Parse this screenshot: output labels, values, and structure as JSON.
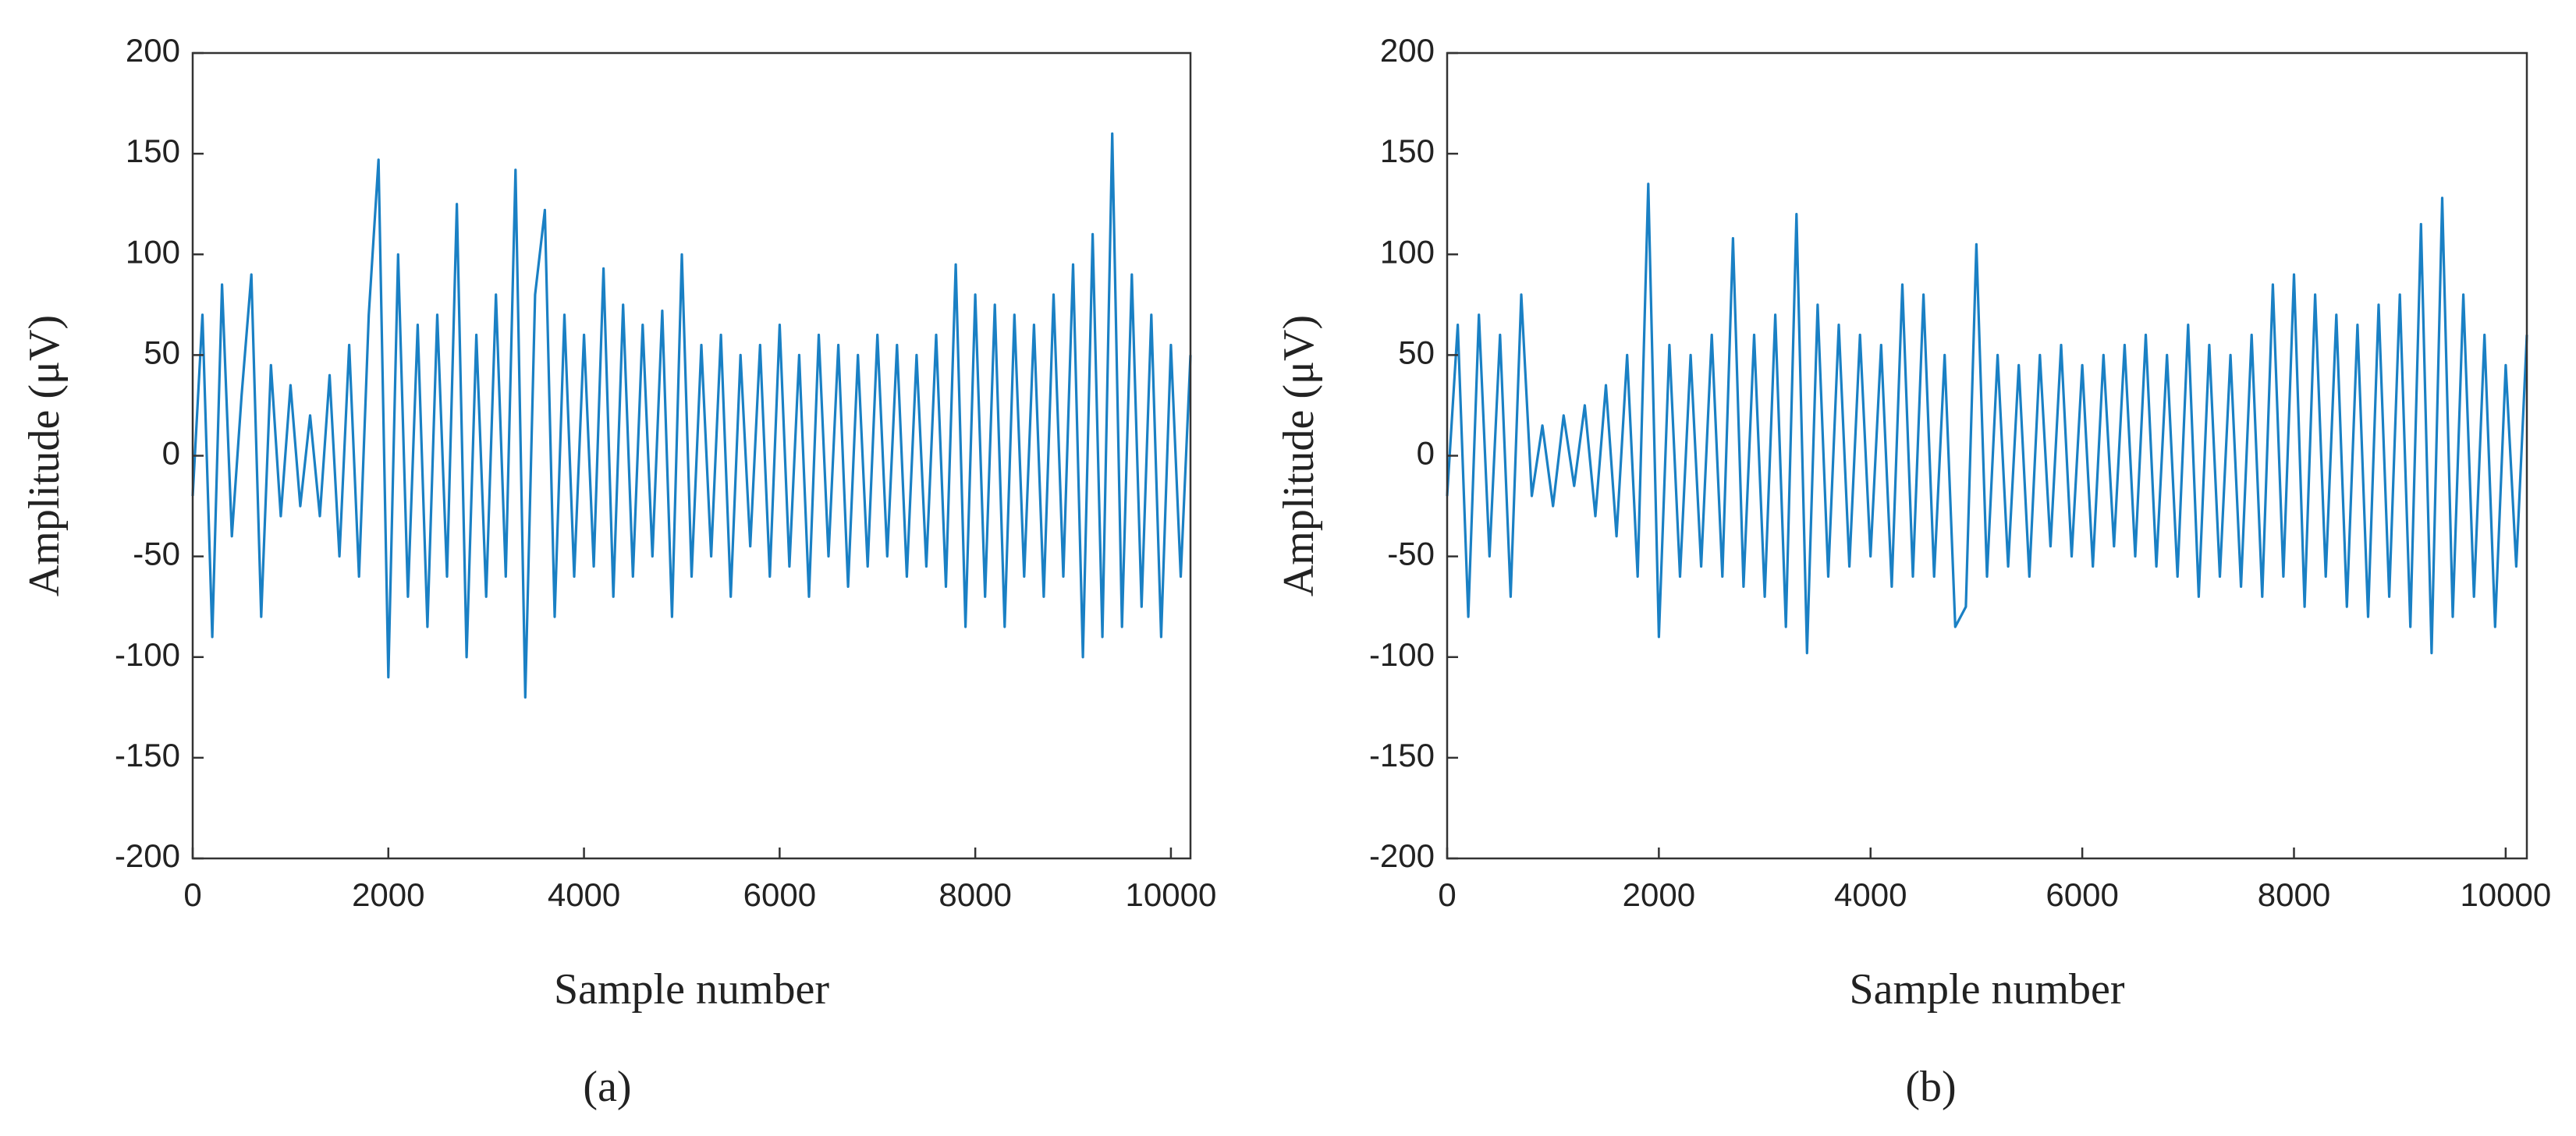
{
  "chart_data": [
    {
      "type": "line",
      "caption": "(a)",
      "xlabel": "Sample number",
      "ylabel": "Amplitude (μV)",
      "xlim": [
        0,
        10200
      ],
      "xticks": [
        0,
        2000,
        4000,
        6000,
        8000,
        10000
      ],
      "ylim": [
        -200,
        200
      ],
      "yticks": [
        -200,
        -150,
        -100,
        -50,
        0,
        50,
        100,
        150,
        200
      ],
      "color": "#1a80c4",
      "x": [
        0,
        100,
        200,
        300,
        400,
        500,
        600,
        700,
        800,
        900,
        1000,
        1100,
        1200,
        1300,
        1400,
        1500,
        1600,
        1700,
        1800,
        1900,
        2000,
        2100,
        2200,
        2300,
        2400,
        2500,
        2600,
        2700,
        2800,
        2900,
        3000,
        3100,
        3200,
        3300,
        3400,
        3500,
        3600,
        3700,
        3800,
        3900,
        4000,
        4100,
        4200,
        4300,
        4400,
        4500,
        4600,
        4700,
        4800,
        4900,
        5000,
        5100,
        5200,
        5300,
        5400,
        5500,
        5600,
        5700,
        5800,
        5900,
        6000,
        6100,
        6200,
        6300,
        6400,
        6500,
        6600,
        6700,
        6800,
        6900,
        7000,
        7100,
        7200,
        7300,
        7400,
        7500,
        7600,
        7700,
        7800,
        7900,
        8000,
        8100,
        8200,
        8300,
        8400,
        8500,
        8600,
        8700,
        8800,
        8900,
        9000,
        9100,
        9200,
        9300,
        9400,
        9500,
        9600,
        9700,
        9800,
        9900,
        10000,
        10100,
        10200
      ],
      "values": [
        -20,
        70,
        -90,
        85,
        -40,
        30,
        90,
        -80,
        45,
        -30,
        35,
        -25,
        20,
        -30,
        40,
        -50,
        55,
        -60,
        70,
        147,
        -110,
        100,
        -70,
        65,
        -85,
        70,
        -60,
        125,
        -100,
        60,
        -70,
        80,
        -60,
        142,
        -120,
        80,
        122,
        -80,
        70,
        -60,
        60,
        -55,
        93,
        -70,
        75,
        -60,
        65,
        -50,
        72,
        -80,
        100,
        -60,
        55,
        -50,
        60,
        -70,
        50,
        -45,
        55,
        -60,
        65,
        -55,
        50,
        -70,
        60,
        -50,
        55,
        -65,
        50,
        -55,
        60,
        -50,
        55,
        -60,
        50,
        -55,
        60,
        -65,
        95,
        -85,
        80,
        -70,
        75,
        -85,
        70,
        -60,
        65,
        -70,
        80,
        -60,
        95,
        -100,
        110,
        -90,
        160,
        -85,
        90,
        -75,
        70,
        -90,
        55,
        -60,
        50
      ]
    },
    {
      "type": "line",
      "caption": "(b)",
      "xlabel": "Sample number",
      "ylabel": "Amplitude (μV)",
      "xlim": [
        0,
        10200
      ],
      "xticks": [
        0,
        2000,
        4000,
        6000,
        8000,
        10000
      ],
      "ylim": [
        -200,
        200
      ],
      "yticks": [
        -200,
        -150,
        -100,
        -50,
        0,
        50,
        100,
        150,
        200
      ],
      "color": "#1a80c4",
      "x": [
        0,
        100,
        200,
        300,
        400,
        500,
        600,
        700,
        800,
        900,
        1000,
        1100,
        1200,
        1300,
        1400,
        1500,
        1600,
        1700,
        1800,
        1900,
        2000,
        2100,
        2200,
        2300,
        2400,
        2500,
        2600,
        2700,
        2800,
        2900,
        3000,
        3100,
        3200,
        3300,
        3400,
        3500,
        3600,
        3700,
        3800,
        3900,
        4000,
        4100,
        4200,
        4300,
        4400,
        4500,
        4600,
        4700,
        4800,
        4900,
        5000,
        5100,
        5200,
        5300,
        5400,
        5500,
        5600,
        5700,
        5800,
        5900,
        6000,
        6100,
        6200,
        6300,
        6400,
        6500,
        6600,
        6700,
        6800,
        6900,
        7000,
        7100,
        7200,
        7300,
        7400,
        7500,
        7600,
        7700,
        7800,
        7900,
        8000,
        8100,
        8200,
        8300,
        8400,
        8500,
        8600,
        8700,
        8800,
        8900,
        9000,
        9100,
        9200,
        9300,
        9400,
        9500,
        9600,
        9700,
        9800,
        9900,
        10000,
        10100,
        10200
      ],
      "values": [
        -20,
        65,
        -80,
        70,
        -50,
        60,
        -70,
        80,
        -20,
        15,
        -25,
        20,
        -15,
        25,
        -30,
        35,
        -40,
        50,
        -60,
        135,
        -90,
        55,
        -60,
        50,
        -55,
        60,
        -60,
        108,
        -65,
        60,
        -70,
        70,
        -85,
        120,
        -98,
        75,
        -60,
        65,
        -55,
        60,
        -50,
        55,
        -65,
        85,
        -60,
        80,
        -60,
        50,
        -85,
        -75,
        105,
        -60,
        50,
        -55,
        45,
        -60,
        50,
        -45,
        55,
        -50,
        45,
        -55,
        50,
        -45,
        55,
        -50,
        60,
        -55,
        50,
        -60,
        65,
        -70,
        55,
        -60,
        50,
        -65,
        60,
        -70,
        85,
        -60,
        90,
        -75,
        80,
        -60,
        70,
        -75,
        65,
        -80,
        75,
        -70,
        80,
        -85,
        115,
        -98,
        128,
        -80,
        80,
        -70,
        60,
        -85,
        45,
        -55,
        60
      ]
    }
  ]
}
